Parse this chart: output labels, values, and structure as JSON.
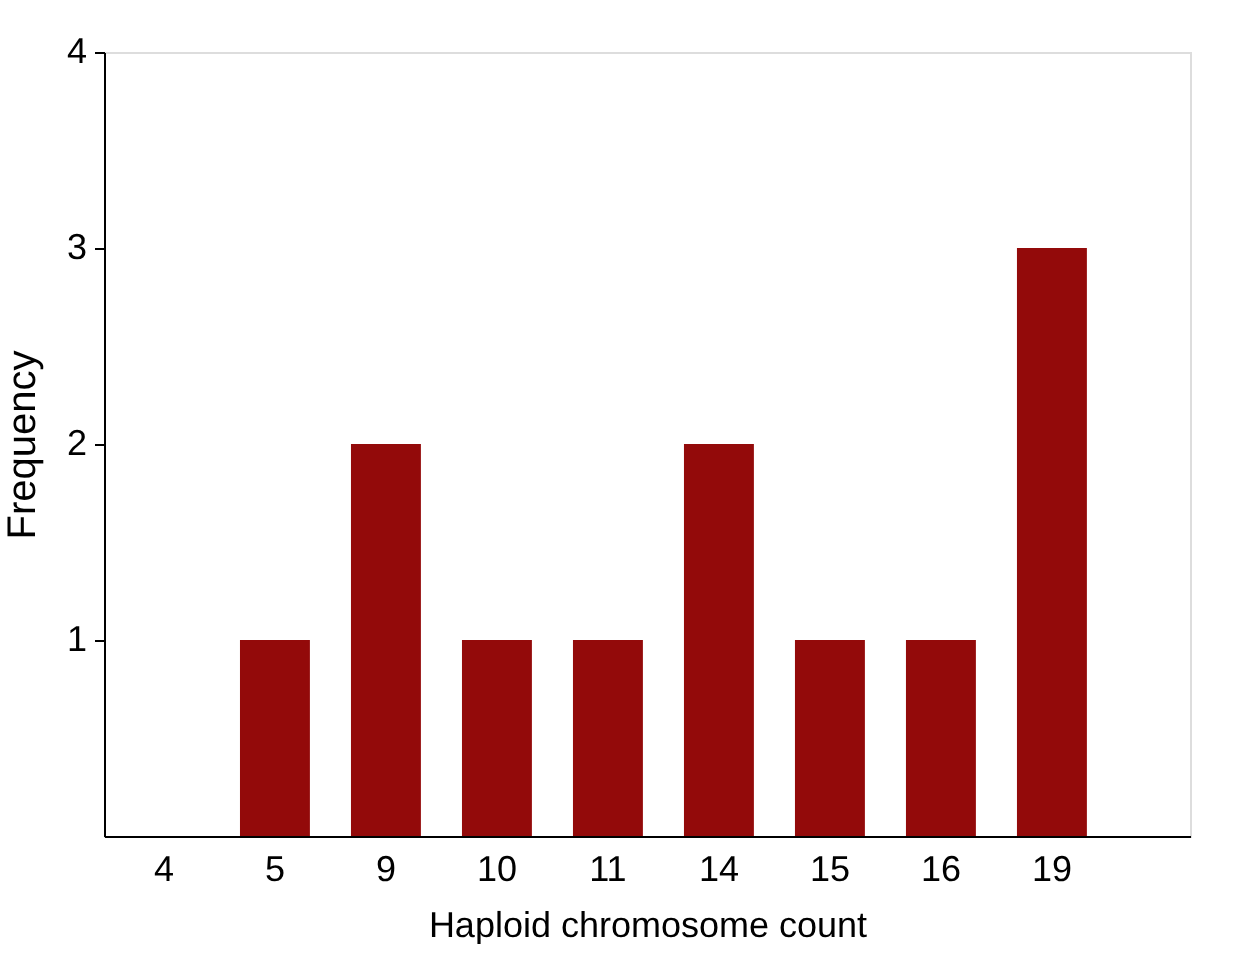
{
  "chart_data": {
    "type": "bar",
    "xlabel": "Haploid chromosome count",
    "ylabel": "Frequency",
    "categories": [
      "4",
      "5",
      "9",
      "10",
      "11",
      "14",
      "15",
      "16",
      "19"
    ],
    "values": [
      0,
      1,
      2,
      1,
      1,
      2,
      1,
      1,
      3
    ],
    "color": "#930a0a",
    "ylim": [
      0,
      4
    ],
    "yticks": [
      1,
      2,
      3,
      4
    ],
    "grid": false
  }
}
